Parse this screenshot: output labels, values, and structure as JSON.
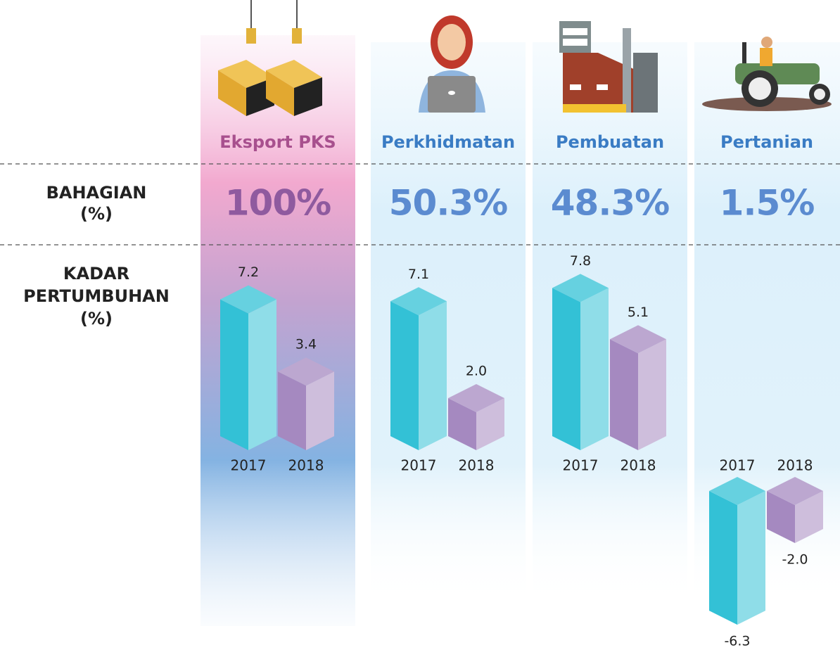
{
  "chart_data": {
    "type": "bar3d",
    "categories": [
      "Eksport PKS",
      "Perkhidmatan",
      "Pembuatan",
      "Pertanian"
    ],
    "share": {
      "label_lines": [
        "BAHAGIAN",
        "(%)"
      ],
      "values": [
        100,
        50.3,
        48.3,
        1.5
      ],
      "value_labels": [
        "100%",
        "50.3%",
        "48.3%",
        "1.5%"
      ]
    },
    "growth_label_lines": [
      "KADAR",
      "PERTUMBUHAN",
      "(%)"
    ],
    "series": [
      {
        "name": "2017",
        "color": "#33c1d6",
        "values": [
          7.2,
          7.1,
          7.8,
          -6.3
        ]
      },
      {
        "name": "2018",
        "color": "#a589c0",
        "values": [
          3.4,
          2.0,
          5.1,
          -2.0
        ],
        "value_labels": [
          "3.4",
          "2.0",
          "5.1",
          "-2.0"
        ]
      }
    ]
  }
}
